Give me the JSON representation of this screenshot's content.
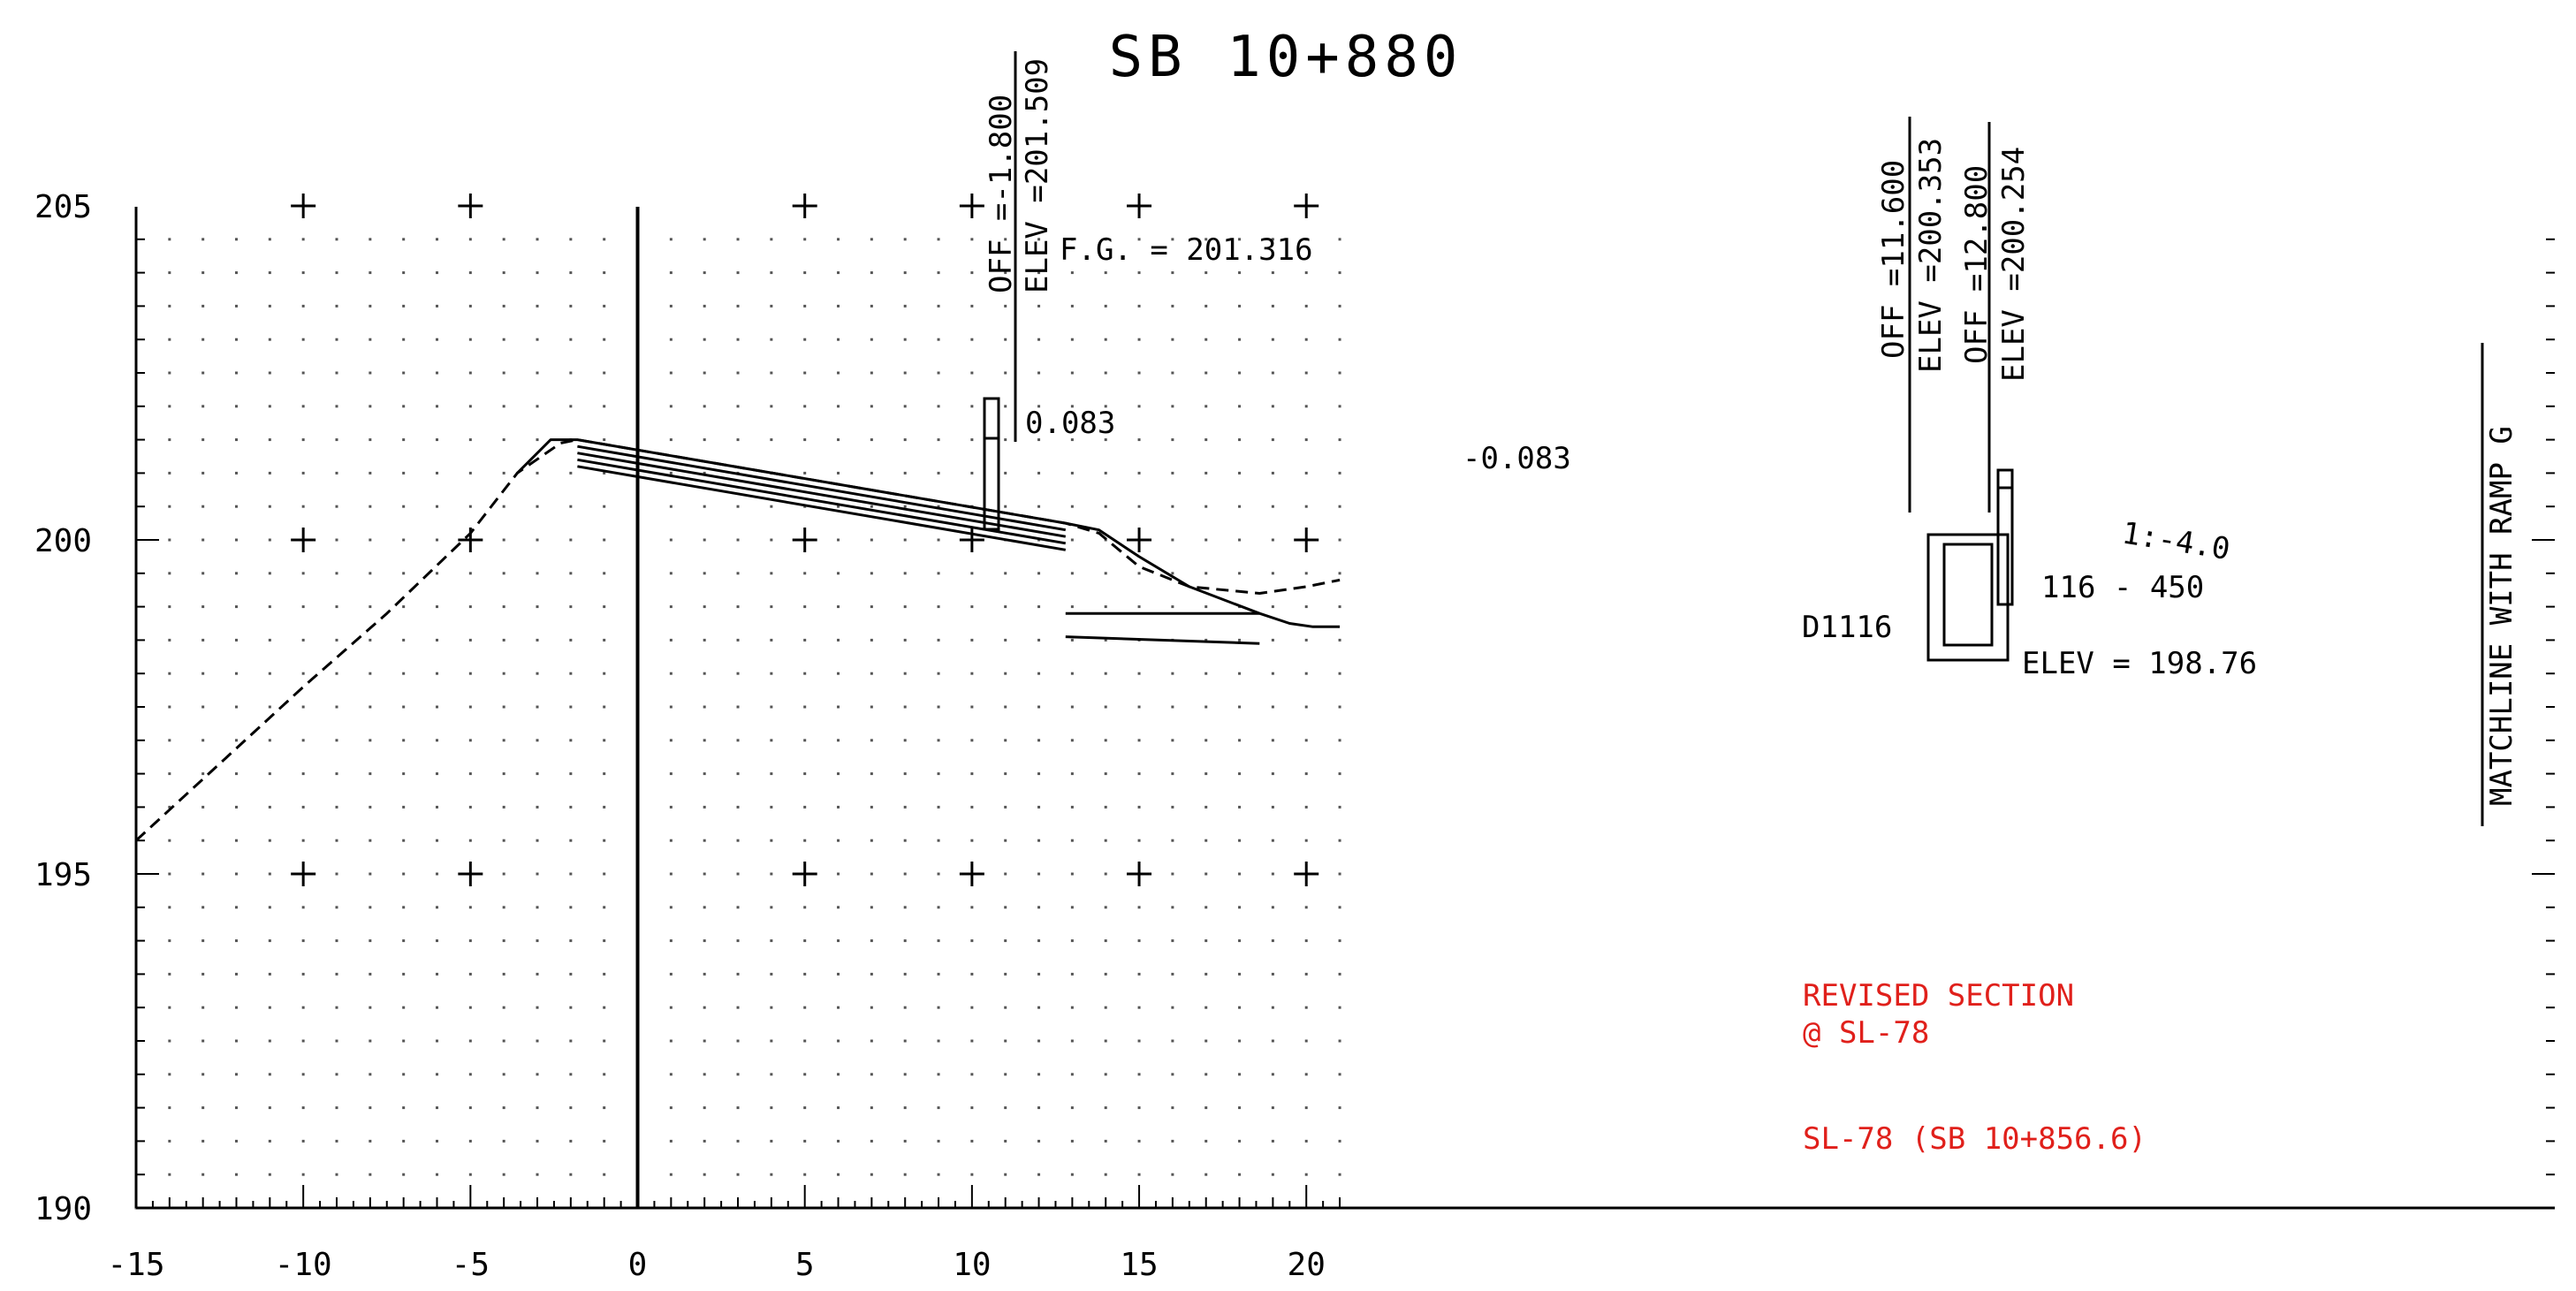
{
  "title": "SB 10+880",
  "axes": {
    "x_min": -15,
    "x_max": 21,
    "y_min": 190,
    "y_max": 206,
    "x_tick_labels": [
      "-15",
      "-10",
      "-5",
      "0",
      "5",
      "10",
      "15",
      "20"
    ],
    "y_tick_labels": [
      "190",
      "195",
      "200",
      "205"
    ],
    "grid": "dotted"
  },
  "labels": {
    "off_left": "OFF =-1.800",
    "elev_left": "ELEV =201.509",
    "fg": "F.G. = 201.316",
    "slope_left": "0.083",
    "slope_right": "-0.083",
    "off_mid": "OFF =11.600",
    "elev_mid": "ELEV =200.353",
    "off_right": "OFF =12.800",
    "elev_right": "ELEV =200.254",
    "sideslope": "1:-4.0",
    "pipe": "116 - 450",
    "inlet": "D1116",
    "inlet_elev": "ELEV = 198.76",
    "matchline": "MATCHLINE WITH RAMP G",
    "revised_1": "REVISED SECTION",
    "revised_2": "@ SL-78",
    "ref": "SL-78 (SB 10+856.6)"
  },
  "colors": {
    "ink": "#000000",
    "revision": "#e0201b"
  },
  "chart_data": {
    "type": "line",
    "title": "SB 10+880",
    "xlim": [
      -15,
      21
    ],
    "ylim": [
      190,
      206
    ],
    "series": [
      {
        "x": [
          -15,
          -10,
          -7.5,
          -5,
          -3.6,
          -2.3,
          -1.8,
          12.8,
          13.8,
          15,
          16.5,
          18.6,
          20,
          21
        ],
        "y": [
          195.5,
          197.8,
          198.9,
          200.1,
          201.0,
          201.45,
          201.5,
          200.25,
          200.1,
          199.6,
          199.3,
          199.2,
          199.3,
          199.4
        ]
      },
      {
        "x": [
          -3.6,
          -2.6,
          -1.8,
          12.8,
          13.8,
          15,
          16.5,
          18.6,
          19.5,
          20.2,
          21
        ],
        "y": [
          201.0,
          201.5,
          201.5,
          200.25,
          200.15,
          199.75,
          199.3,
          198.9,
          198.75,
          198.7,
          198.7
        ]
      },
      {
        "x": [
          -1.8,
          12.8
        ],
        "y": [
          201.4,
          200.15
        ]
      },
      {
        "x": [
          -1.8,
          12.8
        ],
        "y": [
          201.3,
          200.05
        ]
      },
      {
        "x": [
          -1.8,
          12.8
        ],
        "y": [
          201.2,
          199.95
        ]
      },
      {
        "x": [
          -1.8,
          12.8
        ],
        "y": [
          201.1,
          199.85
        ]
      },
      {
        "x": [
          12.8,
          18.6
        ],
        "y": [
          198.9,
          198.9
        ]
      },
      {
        "x": [
          12.8,
          18.6
        ],
        "y": [
          198.55,
          198.45
        ]
      }
    ]
  }
}
